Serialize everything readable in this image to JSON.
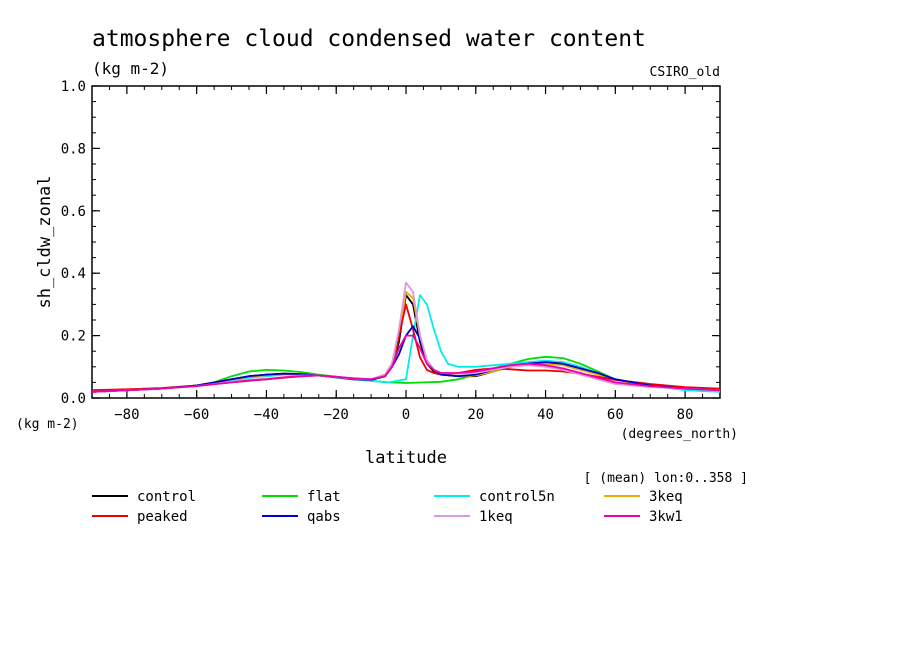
{
  "chart_data": {
    "type": "line",
    "title": "atmosphere cloud condensed water content",
    "units": "(kg m-2)",
    "model": "CSIRO_old",
    "xlabel": "latitude",
    "xunits": "(degrees_north)",
    "ylabel": "sh_cldw_zonal",
    "yunits": "(kg m-2)",
    "mean_note": "[ (mean) lon:0..358 ]",
    "xlim": [
      -90,
      90
    ],
    "ylim": [
      0,
      1.0
    ],
    "xticks": [
      -80,
      -60,
      -40,
      -20,
      0,
      20,
      40,
      60,
      80
    ],
    "xtick_labels": [
      "−80",
      "−60",
      "−40",
      "−20",
      "0",
      "20",
      "40",
      "60",
      "80"
    ],
    "yticks": [
      0,
      0.2,
      0.4,
      0.6,
      0.8,
      1.0
    ],
    "ytick_labels": [
      "0.0",
      "0.2",
      "0.4",
      "0.6",
      "0.8",
      "1.0"
    ],
    "grid": false,
    "legend": "below",
    "series": [
      {
        "name": "control",
        "color": "#000000",
        "x": [
          -90,
          -80,
          -70,
          -60,
          -50,
          -45,
          -40,
          -35,
          -30,
          -25,
          -20,
          -15,
          -10,
          -6,
          -4,
          -2,
          0,
          2,
          4,
          6,
          8,
          10,
          15,
          20,
          25,
          30,
          35,
          40,
          45,
          50,
          55,
          60,
          70,
          80,
          90
        ],
        "y": [
          0.02,
          0.025,
          0.03,
          0.04,
          0.06,
          0.07,
          0.075,
          0.078,
          0.077,
          0.072,
          0.066,
          0.06,
          0.058,
          0.07,
          0.1,
          0.18,
          0.33,
          0.3,
          0.18,
          0.11,
          0.085,
          0.075,
          0.07,
          0.07,
          0.085,
          0.1,
          0.11,
          0.115,
          0.11,
          0.095,
          0.08,
          0.06,
          0.04,
          0.03,
          0.025
        ]
      },
      {
        "name": "flat",
        "color": "#00dd00",
        "x": [
          -90,
          -80,
          -70,
          -60,
          -55,
          -50,
          -45,
          -40,
          -35,
          -30,
          -25,
          -20,
          -15,
          -10,
          -5,
          0,
          5,
          10,
          15,
          20,
          25,
          30,
          35,
          40,
          45,
          50,
          55,
          60,
          70,
          80,
          90
        ],
        "y": [
          0.02,
          0.025,
          0.03,
          0.04,
          0.05,
          0.07,
          0.085,
          0.09,
          0.088,
          0.083,
          0.075,
          0.068,
          0.062,
          0.055,
          0.05,
          0.048,
          0.05,
          0.052,
          0.06,
          0.075,
          0.095,
          0.11,
          0.125,
          0.132,
          0.128,
          0.11,
          0.085,
          0.06,
          0.04,
          0.03,
          0.025
        ]
      },
      {
        "name": "control5n",
        "color": "#00eeee",
        "x": [
          -90,
          -80,
          -70,
          -60,
          -50,
          -45,
          -40,
          -35,
          -30,
          -25,
          -20,
          -15,
          -10,
          -5,
          0,
          2,
          4,
          6,
          8,
          10,
          12,
          15,
          20,
          25,
          30,
          35,
          40,
          45,
          50,
          55,
          60,
          70,
          80,
          90
        ],
        "y": [
          0.02,
          0.025,
          0.03,
          0.04,
          0.055,
          0.065,
          0.07,
          0.075,
          0.075,
          0.072,
          0.065,
          0.06,
          0.055,
          0.05,
          0.06,
          0.2,
          0.33,
          0.3,
          0.22,
          0.15,
          0.11,
          0.1,
          0.1,
          0.105,
          0.11,
          0.115,
          0.12,
          0.115,
          0.1,
          0.08,
          0.06,
          0.04,
          0.025,
          0.02
        ]
      },
      {
        "name": "3keq",
        "color": "#eeaa00",
        "x": [
          -90,
          -80,
          -70,
          -60,
          -50,
          -45,
          -40,
          -35,
          -30,
          -25,
          -20,
          -15,
          -10,
          -6,
          -4,
          -2,
          0,
          2,
          4,
          6,
          8,
          10,
          15,
          20,
          25,
          30,
          35,
          40,
          45,
          50,
          55,
          60,
          70,
          80,
          90
        ],
        "y": [
          0.02,
          0.025,
          0.03,
          0.04,
          0.06,
          0.068,
          0.073,
          0.076,
          0.076,
          0.072,
          0.066,
          0.06,
          0.058,
          0.07,
          0.1,
          0.2,
          0.34,
          0.32,
          0.2,
          0.12,
          0.09,
          0.078,
          0.07,
          0.072,
          0.085,
          0.1,
          0.108,
          0.11,
          0.105,
          0.09,
          0.075,
          0.058,
          0.04,
          0.03,
          0.025
        ]
      },
      {
        "name": "peaked",
        "color": "#ee0000",
        "x": [
          -90,
          -80,
          -70,
          -60,
          -50,
          -45,
          -40,
          -35,
          -30,
          -25,
          -20,
          -15,
          -10,
          -6,
          -4,
          -2,
          0,
          2,
          4,
          6,
          8,
          10,
          15,
          20,
          25,
          30,
          35,
          40,
          45,
          50,
          55,
          60,
          70,
          80,
          90
        ],
        "y": [
          0.025,
          0.028,
          0.032,
          0.04,
          0.05,
          0.055,
          0.06,
          0.065,
          0.07,
          0.072,
          0.068,
          0.062,
          0.06,
          0.075,
          0.11,
          0.2,
          0.3,
          0.22,
          0.13,
          0.09,
          0.08,
          0.075,
          0.08,
          0.09,
          0.095,
          0.092,
          0.088,
          0.088,
          0.085,
          0.078,
          0.068,
          0.058,
          0.045,
          0.035,
          0.03
        ]
      },
      {
        "name": "qabs",
        "color": "#0000cc",
        "x": [
          -90,
          -80,
          -70,
          -60,
          -50,
          -45,
          -40,
          -35,
          -30,
          -25,
          -20,
          -15,
          -10,
          -6,
          -4,
          -2,
          0,
          2,
          4,
          6,
          8,
          10,
          15,
          20,
          25,
          30,
          35,
          40,
          45,
          50,
          55,
          60,
          70,
          80,
          90
        ],
        "y": [
          0.02,
          0.025,
          0.03,
          0.04,
          0.06,
          0.07,
          0.075,
          0.078,
          0.077,
          0.072,
          0.066,
          0.06,
          0.058,
          0.07,
          0.1,
          0.14,
          0.2,
          0.23,
          0.19,
          0.12,
          0.09,
          0.075,
          0.07,
          0.075,
          0.09,
          0.1,
          0.11,
          0.115,
          0.11,
          0.095,
          0.08,
          0.06,
          0.04,
          0.03,
          0.025
        ]
      },
      {
        "name": "1keq",
        "color": "#dd99dd",
        "x": [
          -90,
          -80,
          -70,
          -60,
          -50,
          -45,
          -40,
          -35,
          -30,
          -25,
          -20,
          -15,
          -10,
          -6,
          -4,
          -2,
          0,
          2,
          4,
          6,
          8,
          10,
          15,
          20,
          25,
          30,
          35,
          40,
          45,
          50,
          55,
          60,
          70,
          80,
          90
        ],
        "y": [
          0.02,
          0.025,
          0.03,
          0.038,
          0.052,
          0.058,
          0.062,
          0.067,
          0.072,
          0.072,
          0.067,
          0.062,
          0.06,
          0.075,
          0.11,
          0.22,
          0.37,
          0.34,
          0.2,
          0.12,
          0.09,
          0.08,
          0.078,
          0.08,
          0.09,
          0.1,
          0.105,
          0.1,
          0.09,
          0.075,
          0.06,
          0.045,
          0.035,
          0.03,
          0.025
        ]
      },
      {
        "name": "3kw1",
        "color": "#ee00aa",
        "x": [
          -90,
          -80,
          -70,
          -60,
          -50,
          -45,
          -40,
          -35,
          -30,
          -25,
          -20,
          -15,
          -10,
          -6,
          -4,
          -2,
          0,
          2,
          4,
          6,
          8,
          10,
          15,
          20,
          25,
          30,
          35,
          40,
          45,
          50,
          55,
          60,
          70,
          80,
          90
        ],
        "y": [
          0.02,
          0.025,
          0.03,
          0.038,
          0.05,
          0.056,
          0.06,
          0.066,
          0.07,
          0.072,
          0.068,
          0.063,
          0.06,
          0.07,
          0.1,
          0.16,
          0.2,
          0.2,
          0.16,
          0.11,
          0.09,
          0.08,
          0.08,
          0.085,
          0.095,
          0.105,
          0.11,
          0.105,
          0.095,
          0.08,
          0.065,
          0.05,
          0.038,
          0.03,
          0.025
        ]
      }
    ]
  }
}
